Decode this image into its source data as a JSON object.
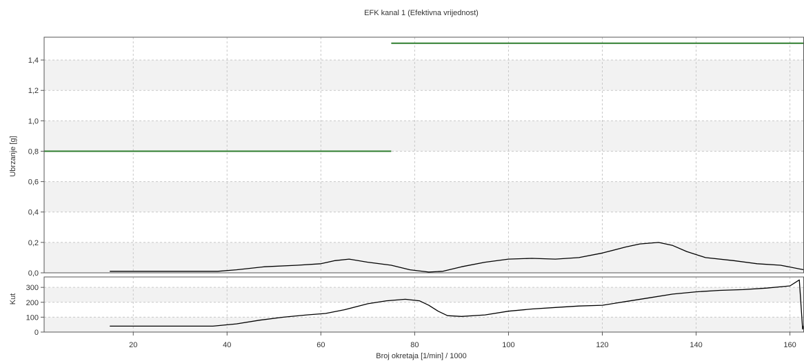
{
  "chart_data": [
    {
      "type": "line",
      "title": "EFK kanal 1 (Efektivna vrijednost)",
      "xlabel": "",
      "ylabel": "Ubrzanje [g]",
      "xlim": [
        1,
        163
      ],
      "ylim": [
        0,
        1.55
      ],
      "y_ticks": [
        "0,0",
        "0,2",
        "0,4",
        "0,6",
        "0,8",
        "1,0",
        "1,2",
        "1,4"
      ],
      "grid": true,
      "series": [
        {
          "name": "",
          "color": "#000000",
          "points": [
            [
              15,
              0.01
            ],
            [
              22,
              0.01
            ],
            [
              30,
              0.01
            ],
            [
              38,
              0.01
            ],
            [
              42,
              0.02
            ],
            [
              48,
              0.04
            ],
            [
              55,
              0.05
            ],
            [
              60,
              0.06
            ],
            [
              63,
              0.08
            ],
            [
              66,
              0.09
            ],
            [
              70,
              0.07
            ],
            [
              75,
              0.05
            ],
            [
              79,
              0.02
            ],
            [
              83,
              0.005
            ],
            [
              86,
              0.01
            ],
            [
              90,
              0.04
            ],
            [
              95,
              0.07
            ],
            [
              100,
              0.09
            ],
            [
              105,
              0.095
            ],
            [
              110,
              0.09
            ],
            [
              115,
              0.1
            ],
            [
              120,
              0.13
            ],
            [
              125,
              0.17
            ],
            [
              128,
              0.19
            ],
            [
              132,
              0.2
            ],
            [
              135,
              0.18
            ],
            [
              138,
              0.14
            ],
            [
              142,
              0.1
            ],
            [
              148,
              0.08
            ],
            [
              153,
              0.06
            ],
            [
              158,
              0.05
            ],
            [
              163,
              0.02
            ]
          ]
        },
        {
          "name": "",
          "color": "#2e7d2e",
          "points": [
            [
              1,
              0.8
            ],
            [
              75,
              0.8
            ]
          ]
        },
        {
          "name": "",
          "color": "#2e7d2e",
          "points": [
            [
              75,
              1.51
            ],
            [
              163,
              1.51
            ]
          ]
        }
      ]
    },
    {
      "type": "line",
      "title": "",
      "xlabel": "Broj okretaja [1/min] / 1000",
      "ylabel": "Kut",
      "xlim": [
        1,
        163
      ],
      "ylim": [
        0,
        370
      ],
      "x_ticks": [
        "20",
        "40",
        "60",
        "80",
        "100",
        "120",
        "140",
        "160"
      ],
      "y_ticks": [
        "0",
        "100",
        "200",
        "300"
      ],
      "grid": true,
      "series": [
        {
          "name": "",
          "color": "#000000",
          "points": [
            [
              15,
              40
            ],
            [
              20,
              40
            ],
            [
              30,
              40
            ],
            [
              37,
              40
            ],
            [
              42,
              55
            ],
            [
              47,
              80
            ],
            [
              52,
              100
            ],
            [
              57,
              115
            ],
            [
              61,
              125
            ],
            [
              65,
              150
            ],
            [
              70,
              190
            ],
            [
              74,
              210
            ],
            [
              78,
              220
            ],
            [
              81,
              210
            ],
            [
              83,
              180
            ],
            [
              85,
              140
            ],
            [
              87,
              110
            ],
            [
              90,
              105
            ],
            [
              95,
              115
            ],
            [
              100,
              140
            ],
            [
              105,
              155
            ],
            [
              110,
              165
            ],
            [
              115,
              175
            ],
            [
              120,
              180
            ],
            [
              125,
              205
            ],
            [
              130,
              230
            ],
            [
              135,
              255
            ],
            [
              140,
              270
            ],
            [
              145,
              280
            ],
            [
              150,
              285
            ],
            [
              155,
              295
            ],
            [
              160,
              310
            ],
            [
              162,
              350
            ],
            [
              162.7,
              20
            ],
            [
              163,
              50
            ]
          ]
        }
      ]
    }
  ]
}
